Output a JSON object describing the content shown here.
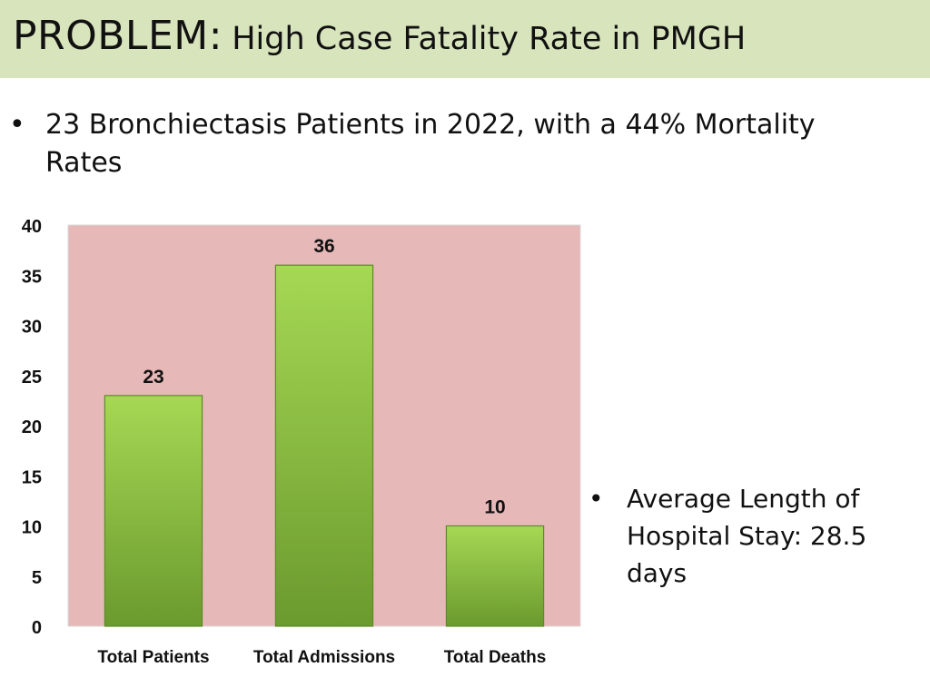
{
  "slide": {
    "title_lead": "PROBLEM:",
    "title_rest": "High Case Fatality Rate in PMGH",
    "bullets": [
      "23 Bronchiectasis Patients in 2022, with a 44% Mortality Rates",
      "Average Length of Hospital Stay: 28.5 days"
    ],
    "bullet_symbol": "•"
  },
  "colors": {
    "title_bar": "#d8e4bc",
    "plot_background": "#e6b8b7",
    "bar_light": "#a6d854",
    "bar_dark": "#6b9a2e"
  },
  "chart_data": {
    "type": "bar",
    "categories": [
      "Total Patients",
      "Total Admissions",
      "Total Deaths"
    ],
    "values": [
      23,
      36,
      10
    ],
    "data_labels": [
      "23",
      "36",
      "10"
    ],
    "title": "",
    "xlabel": "",
    "ylabel": "",
    "ylim": [
      0,
      40
    ],
    "yticks": [
      0,
      5,
      10,
      15,
      20,
      25,
      30,
      35,
      40
    ],
    "grid": false,
    "legend": "none"
  }
}
